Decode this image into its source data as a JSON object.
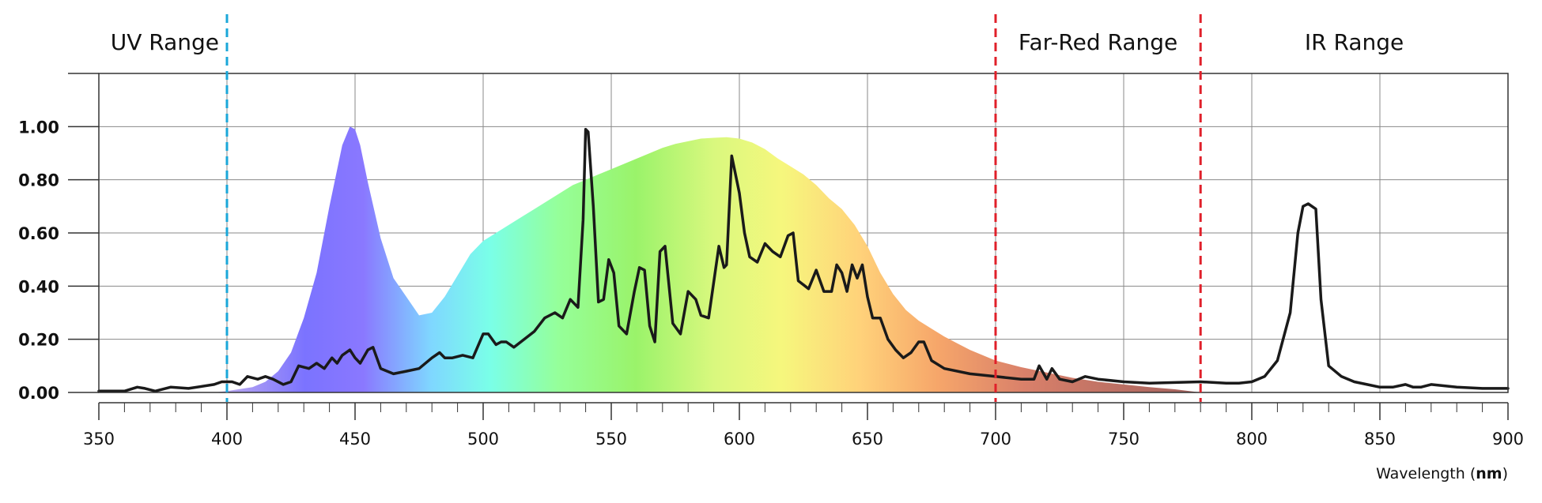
{
  "chart_data": {
    "type": "area",
    "xlabel": "Wavelength",
    "xlabel_unit": "nm",
    "xlim": [
      350,
      900
    ],
    "ylim": [
      0,
      1.2
    ],
    "grid": true,
    "x_ticks": [
      350,
      400,
      450,
      500,
      550,
      600,
      650,
      700,
      750,
      800,
      850,
      900
    ],
    "y_ticks": [
      "0.00",
      "0.20",
      "0.40",
      "0.60",
      "0.80",
      "1.00"
    ],
    "y_tick_values": [
      0,
      0.2,
      0.4,
      0.6,
      0.8,
      1.0
    ],
    "regions": [
      {
        "label": "UV Range",
        "boundary": 400,
        "color": "#1aa7d9"
      },
      {
        "label": "Far-Red Range",
        "boundary": 700,
        "color": "#e0202a"
      },
      {
        "label": "IR Range",
        "boundary": 780,
        "color": "#e0202a"
      }
    ],
    "series": [
      {
        "style": "filled-spectrum",
        "x": [
          395,
          400,
          410,
          415,
          420,
          425,
          430,
          435,
          440,
          445,
          448,
          450,
          452,
          455,
          460,
          465,
          470,
          475,
          480,
          485,
          490,
          495,
          500,
          505,
          510,
          515,
          520,
          525,
          530,
          535,
          540,
          545,
          550,
          555,
          560,
          565,
          570,
          575,
          580,
          585,
          590,
          595,
          600,
          605,
          610,
          615,
          620,
          625,
          630,
          635,
          640,
          645,
          650,
          655,
          660,
          665,
          670,
          675,
          680,
          685,
          690,
          695,
          700,
          710,
          720,
          730,
          740,
          750,
          760,
          770,
          780
        ],
        "y": [
          0,
          0.005,
          0.02,
          0.04,
          0.08,
          0.15,
          0.28,
          0.45,
          0.7,
          0.93,
          1.0,
          0.99,
          0.93,
          0.79,
          0.58,
          0.43,
          0.36,
          0.29,
          0.3,
          0.36,
          0.44,
          0.52,
          0.57,
          0.6,
          0.63,
          0.66,
          0.69,
          0.72,
          0.75,
          0.78,
          0.8,
          0.82,
          0.84,
          0.86,
          0.88,
          0.9,
          0.92,
          0.935,
          0.945,
          0.955,
          0.958,
          0.96,
          0.955,
          0.94,
          0.915,
          0.88,
          0.85,
          0.82,
          0.78,
          0.73,
          0.69,
          0.63,
          0.55,
          0.45,
          0.37,
          0.31,
          0.27,
          0.24,
          0.21,
          0.185,
          0.16,
          0.14,
          0.12,
          0.095,
          0.075,
          0.055,
          0.04,
          0.03,
          0.02,
          0.012,
          0.0
        ]
      },
      {
        "style": "black-line",
        "x": [
          350,
          360,
          365,
          368,
          372,
          378,
          385,
          395,
          398,
          402,
          405,
          408,
          412,
          415,
          418,
          422,
          425,
          428,
          432,
          435,
          438,
          441,
          443,
          445,
          448,
          450,
          452,
          455,
          457,
          460,
          465,
          470,
          475,
          480,
          483,
          485,
          488,
          492,
          496,
          500,
          502,
          505,
          507,
          509,
          512,
          516,
          520,
          524,
          528,
          531,
          534,
          537,
          539,
          540,
          541,
          543,
          545,
          547,
          549,
          551,
          553,
          556,
          559,
          561,
          563,
          565,
          567,
          569,
          571,
          574,
          577,
          580,
          583,
          585,
          588,
          592,
          594,
          595,
          597,
          600,
          602,
          604,
          607,
          610,
          613,
          616,
          619,
          621,
          623,
          627,
          630,
          633,
          636,
          638,
          640,
          642,
          644,
          646,
          648,
          650,
          652,
          655,
          658,
          661,
          664,
          667,
          670,
          672,
          675,
          680,
          690,
          700,
          710,
          715,
          717,
          720,
          722,
          725,
          730,
          735,
          740,
          750,
          760,
          780,
          790,
          795,
          800,
          805,
          810,
          815,
          818,
          820,
          822,
          825,
          827,
          830,
          835,
          840,
          845,
          850,
          855,
          860,
          863,
          866,
          870,
          880,
          890,
          900
        ],
        "y": [
          0.005,
          0.005,
          0.02,
          0.015,
          0.005,
          0.02,
          0.015,
          0.03,
          0.04,
          0.04,
          0.03,
          0.06,
          0.05,
          0.06,
          0.05,
          0.03,
          0.04,
          0.1,
          0.09,
          0.11,
          0.09,
          0.13,
          0.11,
          0.14,
          0.16,
          0.13,
          0.11,
          0.16,
          0.17,
          0.09,
          0.07,
          0.08,
          0.09,
          0.13,
          0.15,
          0.13,
          0.13,
          0.14,
          0.13,
          0.22,
          0.22,
          0.18,
          0.19,
          0.19,
          0.17,
          0.2,
          0.23,
          0.28,
          0.3,
          0.28,
          0.35,
          0.32,
          0.65,
          0.99,
          0.98,
          0.7,
          0.34,
          0.35,
          0.5,
          0.45,
          0.25,
          0.22,
          0.38,
          0.47,
          0.46,
          0.25,
          0.19,
          0.53,
          0.55,
          0.26,
          0.22,
          0.38,
          0.35,
          0.29,
          0.28,
          0.55,
          0.47,
          0.48,
          0.89,
          0.75,
          0.6,
          0.51,
          0.49,
          0.56,
          0.53,
          0.51,
          0.59,
          0.6,
          0.42,
          0.39,
          0.46,
          0.38,
          0.38,
          0.48,
          0.45,
          0.38,
          0.48,
          0.43,
          0.48,
          0.36,
          0.28,
          0.28,
          0.2,
          0.16,
          0.13,
          0.15,
          0.19,
          0.19,
          0.12,
          0.09,
          0.07,
          0.06,
          0.05,
          0.05,
          0.1,
          0.05,
          0.09,
          0.05,
          0.04,
          0.06,
          0.05,
          0.04,
          0.035,
          0.04,
          0.035,
          0.035,
          0.04,
          0.06,
          0.12,
          0.3,
          0.6,
          0.7,
          0.71,
          0.69,
          0.35,
          0.1,
          0.06,
          0.04,
          0.03,
          0.02,
          0.02,
          0.03,
          0.02,
          0.02,
          0.03,
          0.02,
          0.015,
          0.015
        ]
      }
    ]
  }
}
